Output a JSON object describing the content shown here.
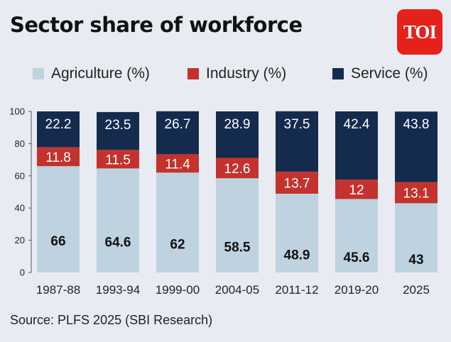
{
  "header": {
    "title": "Sector share of workforce",
    "logo_text": "TOI"
  },
  "footer": {
    "source": "Source: PLFS 2025 (SBI Research)"
  },
  "colors": {
    "agriculture": "#bfd2df",
    "industry": "#c4322d",
    "service": "#142b4e",
    "background": "#e8ecf2",
    "logo": "#e4221b"
  },
  "chart_data": {
    "type": "bar",
    "stacked": true,
    "title": "Sector share of workforce",
    "xlabel": "",
    "ylabel": "",
    "ylim": [
      0,
      100
    ],
    "yticks": [
      0,
      20,
      40,
      60,
      80,
      100
    ],
    "legend_position": "top",
    "grid": false,
    "categories": [
      "1987-88",
      "1993-94",
      "1999-00",
      "2004-05",
      "2011-12",
      "2019-20",
      "2025"
    ],
    "series": [
      {
        "name": "Agriculture (%)",
        "values": [
          66,
          64.6,
          62,
          58.5,
          48.9,
          45.6,
          43
        ]
      },
      {
        "name": "Industry (%)",
        "values": [
          11.8,
          11.5,
          11.4,
          12.6,
          13.7,
          12,
          13.1
        ]
      },
      {
        "name": "Service (%)",
        "values": [
          22.2,
          23.5,
          26.7,
          28.9,
          37.5,
          42.4,
          43.8
        ]
      }
    ]
  }
}
